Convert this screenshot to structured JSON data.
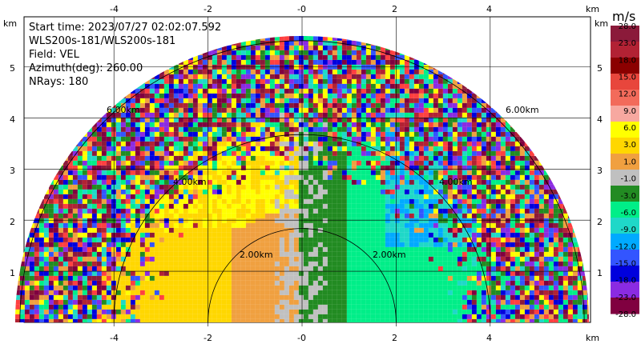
{
  "info": {
    "start_time": "Start time: 2023/07/27 02:02:07.592",
    "instrument": "WLS200s-181/WLS200s-181",
    "field": "Field: VEL",
    "azimuth": "Azimuth(deg): 260.00",
    "nrays": "NRays: 180"
  },
  "axes": {
    "x_ticks": [
      "-4",
      "-2",
      "-0",
      "2",
      "4"
    ],
    "y_ticks": [
      "1",
      "2",
      "3",
      "4",
      "5"
    ],
    "unit_label": "km"
  },
  "range_rings": [
    "2.00km",
    "4.00km",
    "6.00km"
  ],
  "colorbar": {
    "unit": "m/s",
    "labels": [
      "28.0",
      "23.0",
      "18.0",
      "15.0",
      "12.0",
      "9.0",
      "6.0",
      "3.0",
      "1.0",
      "-1.0",
      "-3.0",
      "-6.0",
      "-9.0",
      "-12.0",
      "-15.0",
      "-18.0",
      "-23.0",
      "-28.0"
    ],
    "colors": [
      "#8b1a3a",
      "#b22234",
      "#8b0000",
      "#e8463c",
      "#f26b5b",
      "#f7a8a0",
      "#ffff00",
      "#ffd700",
      "#f0a040",
      "#c0c0c0",
      "#228b22",
      "#00ee88",
      "#1fd8c8",
      "#00aaff",
      "#3355ff",
      "#0000dd",
      "#8a2be2",
      "#800040"
    ]
  }
}
